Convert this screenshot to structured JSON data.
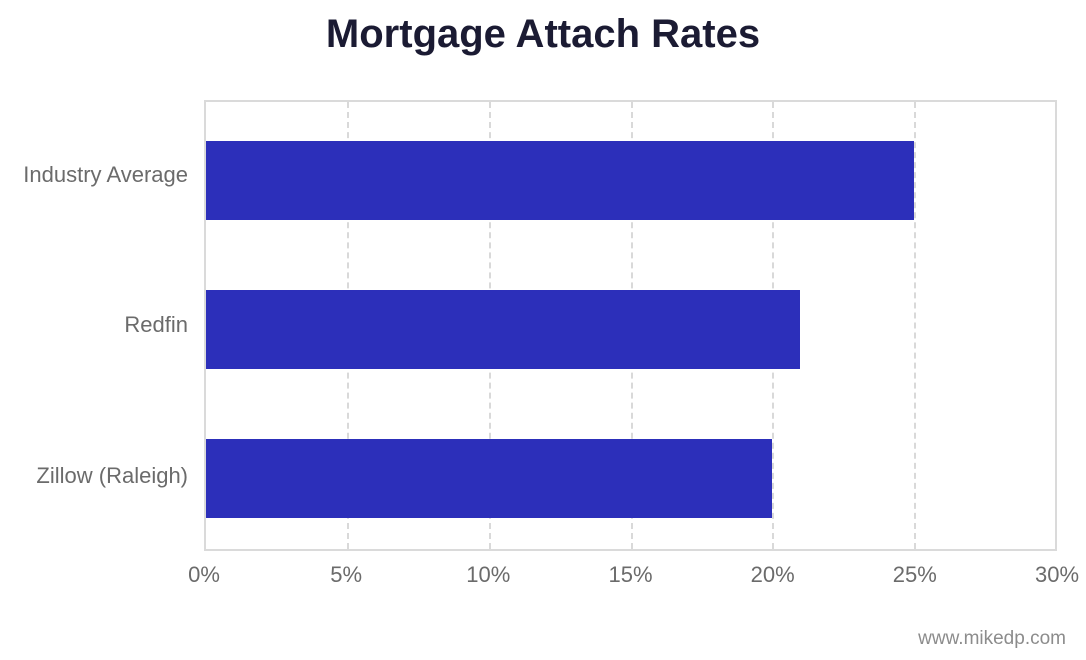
{
  "chart_data": {
    "type": "bar",
    "orientation": "horizontal",
    "title": "Mortgage Attach Rates",
    "categories": [
      "Industry Average",
      "Redfin",
      "Zillow (Raleigh)"
    ],
    "values": [
      25,
      21,
      20
    ],
    "value_unit": "%",
    "xlabel": "",
    "ylabel": "",
    "xlim": [
      0,
      30
    ],
    "x_ticks": [
      "0%",
      "5%",
      "10%",
      "15%",
      "20%",
      "25%",
      "30%"
    ],
    "grid": "dashed-vertical",
    "legend": "none",
    "bar_color": "#2c2fba",
    "title_color": "#1b1b33",
    "label_color": "#6b6b6b",
    "grid_color": "#d9d9d9"
  },
  "footer": {
    "watermark": "www.mikedp.com"
  }
}
